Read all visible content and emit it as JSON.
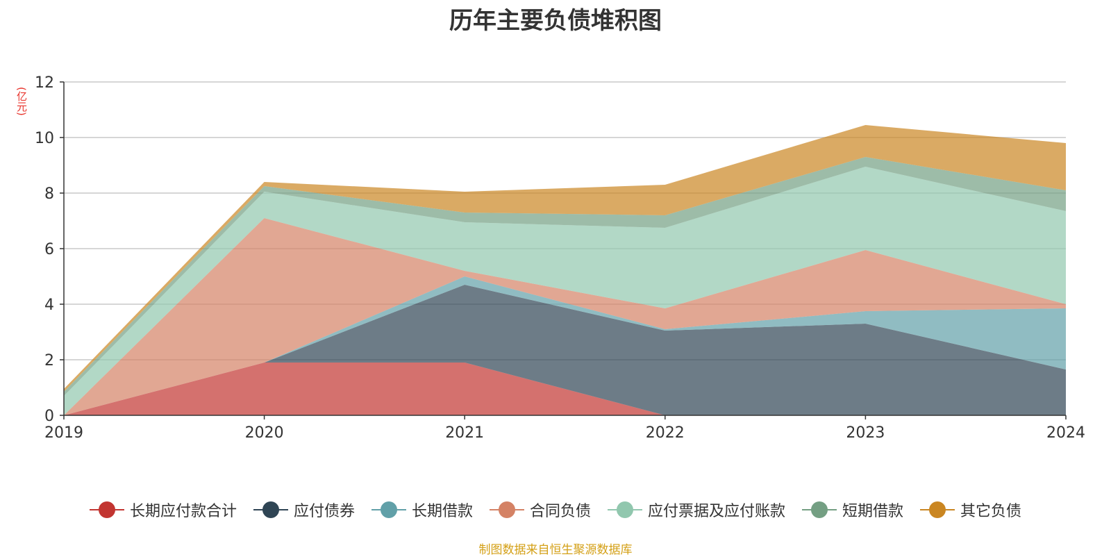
{
  "chart_data": {
    "type": "area",
    "stacked": true,
    "title": "历年主要负债堆积图",
    "ylabel": "(亿元)",
    "xlabel": "",
    "x": [
      "2019",
      "2020",
      "2021",
      "2022",
      "2023",
      "2024"
    ],
    "ylim": [
      0,
      12
    ],
    "yticks": [
      0,
      2,
      4,
      6,
      8,
      10,
      12
    ],
    "grid": true,
    "legend_position": "bottom",
    "series": [
      {
        "name": "长期应付款合计",
        "color": "#c23531",
        "values": [
          0,
          1.9,
          1.9,
          0,
          0,
          0
        ]
      },
      {
        "name": "应付债券",
        "color": "#2f4554",
        "values": [
          0,
          0,
          2.8,
          3.05,
          3.3,
          1.65
        ]
      },
      {
        "name": "长期借款",
        "color": "#61a0a8",
        "values": [
          0,
          0,
          0.3,
          0.05,
          0.45,
          2.2
        ]
      },
      {
        "name": "合同负债",
        "color": "#d48265",
        "values": [
          0,
          5.2,
          0.2,
          0.75,
          2.2,
          0.15
        ]
      },
      {
        "name": "应付票据及应付账款",
        "color": "#91c7ae",
        "values": [
          0.7,
          0.95,
          1.75,
          2.9,
          3.0,
          3.35
        ]
      },
      {
        "name": "短期借款",
        "color": "#749f83",
        "values": [
          0.15,
          0.2,
          0.35,
          0.45,
          0.35,
          0.75
        ]
      },
      {
        "name": "其它负债",
        "color": "#ca8622",
        "values": [
          0.1,
          0.15,
          0.75,
          1.1,
          1.15,
          1.7
        ]
      }
    ]
  },
  "source_note": "制图数据来自恒生聚源数据库"
}
